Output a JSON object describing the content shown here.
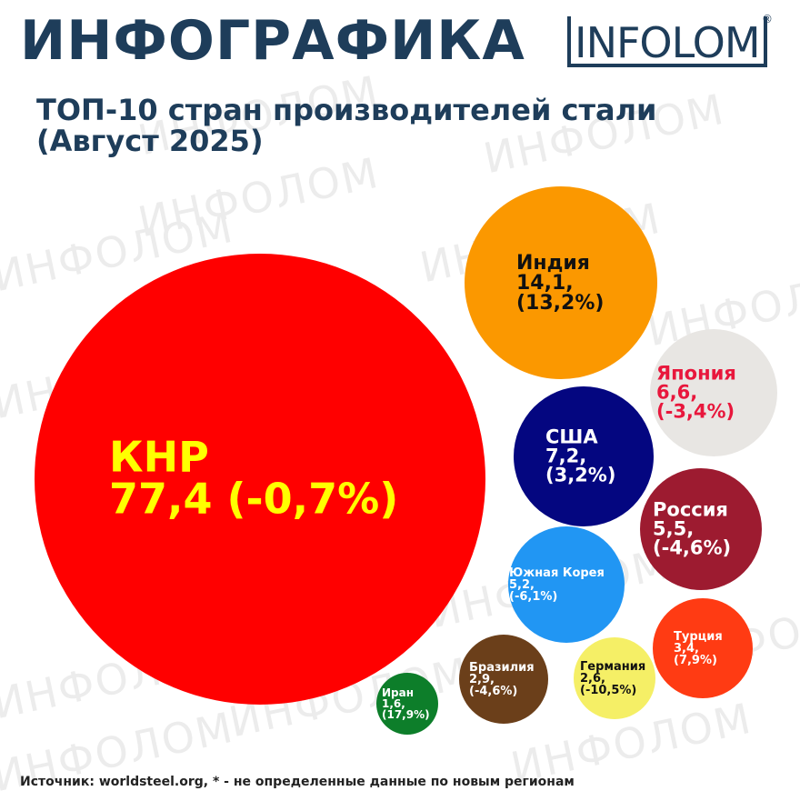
{
  "header": {
    "title": "ИНФОГРАФИКА",
    "logo_text": "INFOLOM",
    "logo_mark": "®",
    "watermark": "ИНФОЛОМ"
  },
  "subtitle_line1": "ТОП-10 стран производителей стали",
  "subtitle_line2": "(Август 2025)",
  "footer": {
    "source": "Источник: worldsteel.org,  * - не определенные данные по новым регионам"
  },
  "chart_data": {
    "type": "bubble",
    "title": "ТОП-10 стран производителей стали (Август 2025)",
    "series": [
      {
        "name": "КНР",
        "value_label": "77,4",
        "change_label": "(-0,7%)",
        "value": 77.4,
        "change": -0.7,
        "color": "#ff0000",
        "text_color": "#ffff00"
      },
      {
        "name": "Индия",
        "value_label": "14,1,",
        "change_label": "(13,2%)",
        "value": 14.1,
        "change": 13.2,
        "color": "#fb9800",
        "text_color": "#111111"
      },
      {
        "name": "Япония",
        "value_label": "6,6,",
        "change_label": "(-3,4%)",
        "value": 6.6,
        "change": -3.4,
        "color": "#e8e6e3",
        "text_color": "#e8173c"
      },
      {
        "name": "США",
        "value_label": "7,2,",
        "change_label": "(3,2%)",
        "value": 7.2,
        "change": 3.2,
        "color": "#040680",
        "text_color": "#ffffff"
      },
      {
        "name": "Россия",
        "value_label": "5,5,",
        "change_label": "(-4,6%)",
        "value": 5.5,
        "change": -4.6,
        "color": "#9d1b30",
        "text_color": "#ffffff"
      },
      {
        "name": "Южная Корея",
        "value_label": "5,2,",
        "change_label": "(-6,1%)",
        "value": 5.2,
        "change": -6.1,
        "color": "#2196f3",
        "text_color": "#ffffff"
      },
      {
        "name": "Турция",
        "value_label": "3,4,",
        "change_label": "(7,9%)",
        "value": 3.4,
        "change": 7.9,
        "color": "#ff3b13",
        "text_color": "#ffffff"
      },
      {
        "name": "Германия",
        "value_label": "2,6,",
        "change_label": "(-10,5%)",
        "value": 2.6,
        "change": -10.5,
        "color": "#f5ef66",
        "text_color": "#111111"
      },
      {
        "name": "Бразилия",
        "value_label": "2,9,",
        "change_label": "(-4,6%)",
        "value": 2.9,
        "change": -4.6,
        "color": "#6b3f1a",
        "text_color": "#ffffff"
      },
      {
        "name": "Иран",
        "value_label": "1,6,",
        "change_label": "(17,9%)",
        "value": 1.6,
        "change": 17.9,
        "color": "#0d7e2a",
        "text_color": "#ffffff"
      }
    ]
  }
}
